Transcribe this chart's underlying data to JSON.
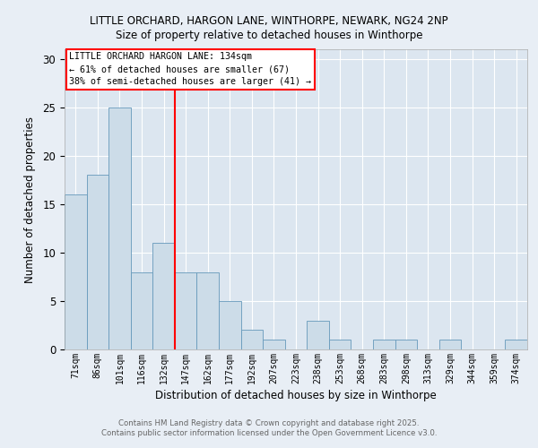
{
  "title_line1": "LITTLE ORCHARD, HARGON LANE, WINTHORPE, NEWARK, NG24 2NP",
  "title_line2": "Size of property relative to detached houses in Winthorpe",
  "xlabel": "Distribution of detached houses by size in Winthorpe",
  "ylabel": "Number of detached properties",
  "categories": [
    "71sqm",
    "86sqm",
    "101sqm",
    "116sqm",
    "132sqm",
    "147sqm",
    "162sqm",
    "177sqm",
    "192sqm",
    "207sqm",
    "223sqm",
    "238sqm",
    "253sqm",
    "268sqm",
    "283sqm",
    "298sqm",
    "313sqm",
    "329sqm",
    "344sqm",
    "359sqm",
    "374sqm"
  ],
  "values": [
    16,
    18,
    25,
    8,
    11,
    8,
    8,
    5,
    2,
    1,
    0,
    3,
    1,
    0,
    1,
    1,
    0,
    1,
    0,
    0,
    1
  ],
  "bar_color": "#ccdce8",
  "bar_edge_color": "#6699bb",
  "red_line_index": 4,
  "annotation_title": "LITTLE ORCHARD HARGON LANE: 134sqm",
  "annotation_line2": "← 61% of detached houses are smaller (67)",
  "annotation_line3": "38% of semi-detached houses are larger (41) →",
  "ylim": [
    0,
    31
  ],
  "yticks": [
    0,
    5,
    10,
    15,
    20,
    25,
    30
  ],
  "footer_line1": "Contains HM Land Registry data © Crown copyright and database right 2025.",
  "footer_line2": "Contains public sector information licensed under the Open Government Licence v3.0.",
  "fig_bg_color": "#e8eef5",
  "plot_bg_color": "#dce6f0"
}
